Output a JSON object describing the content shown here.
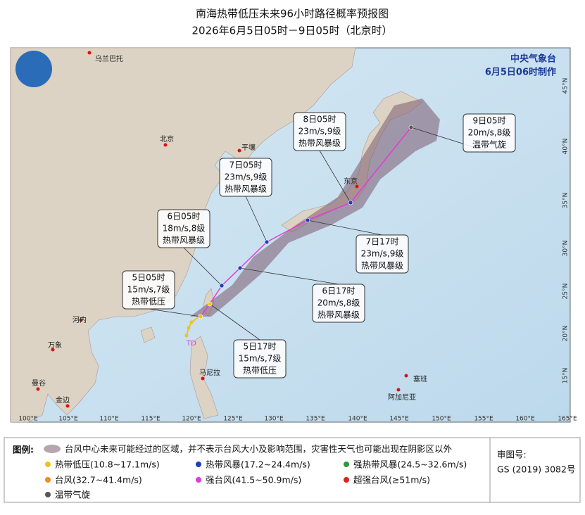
{
  "title": [
    "南海热带低压未来96小时路径概率预报图",
    "2026年6月5日05时－9日05时（北京时）"
  ],
  "agency": "中央气象台",
  "issued": "6月5日06时制作",
  "cities": [
    "乌兰巴托",
    "北京",
    "平壤",
    "东京",
    "河内",
    "万象",
    "曼谷",
    "金边",
    "马尼拉",
    "塞班",
    "阿加尼亚"
  ],
  "current_label": "TD",
  "forecasts": [
    {
      "time": "5日05时",
      "wind": "15m/s,7级",
      "level": "热带低压"
    },
    {
      "time": "5日17时",
      "wind": "15m/s,7级",
      "level": "热带低压"
    },
    {
      "time": "6日05时",
      "wind": "18m/s,8级",
      "level": "热带风暴级"
    },
    {
      "time": "6日17时",
      "wind": "20m/s,8级",
      "level": "热带风暴级"
    },
    {
      "time": "7日05时",
      "wind": "23m/s,9级",
      "level": "热带风暴级"
    },
    {
      "time": "7日17时",
      "wind": "23m/s,9级",
      "level": "热带风暴级"
    },
    {
      "time": "8日05时",
      "wind": "23m/s,9级",
      "level": "热带风暴级"
    },
    {
      "time": "9日05时",
      "wind": "20m/s,8级",
      "level": "温带气旋"
    }
  ],
  "lon_labels": [
    "100°E",
    "105°E",
    "110°E",
    "115°E",
    "120°E",
    "125°E",
    "130°E",
    "135°E",
    "140°E",
    "145°E",
    "150°E",
    "155°E",
    "160°E",
    "165°E"
  ],
  "lat_labels": [
    "45°N",
    "40°N",
    "35°N",
    "30°N",
    "25°N",
    "20°N",
    "15°N"
  ],
  "legend": {
    "heading": "图例:",
    "cone": "台风中心未来可能经过的区域，并不表示台风大小及影响范围，灾害性天气也可能出现在阴影区以外",
    "items": [
      {
        "label": "热带低压(10.8~17.1m/s)",
        "color": "#f2c21b"
      },
      {
        "label": "热带风暴(17.2~24.4m/s)",
        "color": "#1f3fb8"
      },
      {
        "label": "强热带风暴(24.5~32.6m/s)",
        "color": "#2e9a3a"
      },
      {
        "label": "台风(32.7~41.4m/s)",
        "color": "#f08a1c"
      },
      {
        "label": "强台风(41.5~50.9m/s)",
        "color": "#e23ad8"
      },
      {
        "label": "超强台风(≥51m/s)",
        "color": "#e02020"
      },
      {
        "label": "温带气旋",
        "color": "#555555"
      }
    ]
  },
  "approval": {
    "label": "审图号:",
    "number": "GS (2019) 3082号"
  }
}
